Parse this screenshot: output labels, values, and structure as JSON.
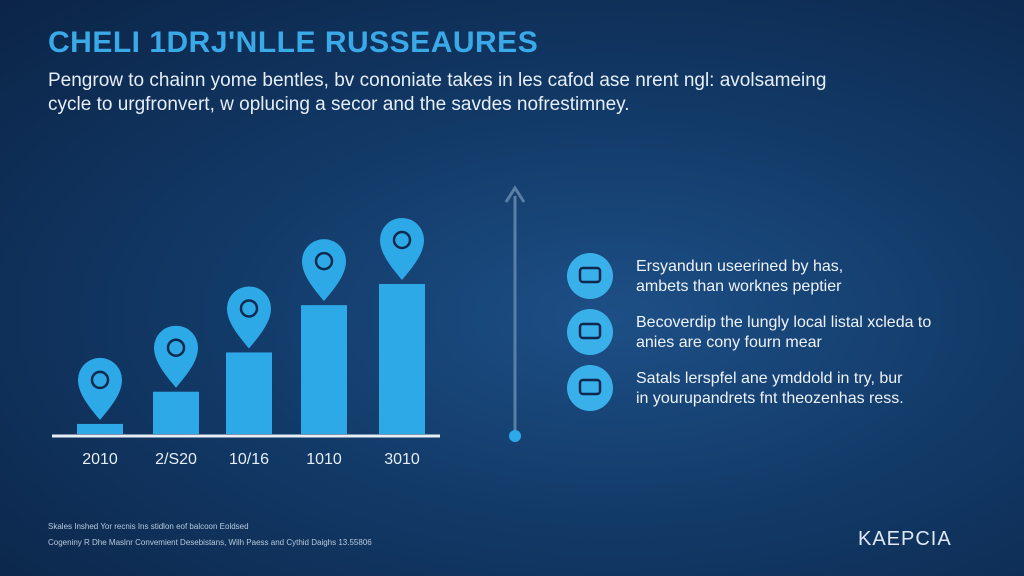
{
  "header": {
    "title": "CHELI 1DRJ'NLLE RUSSEAURES",
    "subtitle": [
      "Pengrow to chainn yome bentles, bv cononiate takes in les cafod ase nrent ngl: avolsameing",
      "cycle to urgfronvert, w oplucing a secor and the savdes nofrestimney."
    ]
  },
  "chart_data": {
    "type": "bar",
    "categories": [
      "2010",
      "2/S20",
      "10/16",
      "1010",
      "3010"
    ],
    "values": [
      10,
      42,
      81,
      128,
      149
    ],
    "color": "#2ea9e8"
  },
  "features": [
    {
      "lines": [
        "Ersyandun useerined by has,",
        "ambets than worknes peptier"
      ]
    },
    {
      "lines": [
        "Becoverdip the lungly local listal xcleda to",
        "anies are cony fourn mear"
      ]
    },
    {
      "lines": [
        "Satals lerspfel ane ymddold in try, bur",
        "in yourupandrets fnt theozenhas ress."
      ]
    }
  ],
  "footer": {
    "lines": [
      "Skales Inshed Yor recnis Ins stidlon eof balcoon Eoldsed",
      "Cogeniny R Dhe Maslnr Convemient Desebistans, Wilh Paess and Cythid Daighs 13.55806"
    ],
    "logo": "KAEPCIA"
  }
}
